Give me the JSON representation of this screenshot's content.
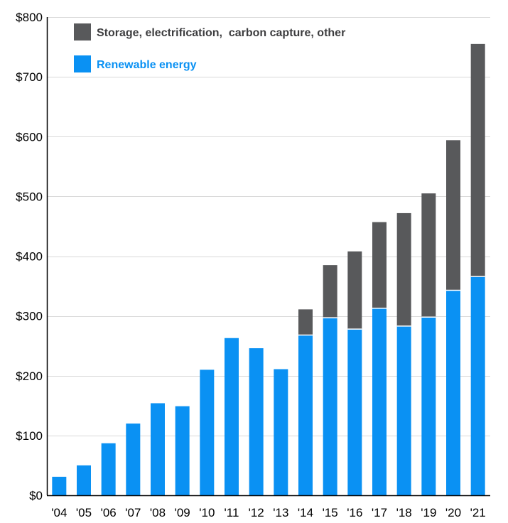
{
  "chart_data": {
    "type": "bar",
    "stacked": true,
    "categories": [
      "'04",
      "'05",
      "'06",
      "'07",
      "'08",
      "'09",
      "'10",
      "'11",
      "'12",
      "'13",
      "'14",
      "'15",
      "'16",
      "'17",
      "'18",
      "'19",
      "'20",
      "'21"
    ],
    "series": [
      {
        "name": "Renewable energy",
        "color": "#0a91f3",
        "values": [
          31,
          50,
          87,
          120,
          154,
          149,
          210,
          263,
          246,
          211,
          268,
          297,
          278,
          313,
          283,
          298,
          343,
          366
        ]
      },
      {
        "name": "Storage, electrification,  carbon capture, other",
        "color": "#58595b",
        "values": [
          0,
          0,
          0,
          0,
          0,
          0,
          0,
          0,
          0,
          0,
          43,
          88,
          130,
          144,
          189,
          207,
          251,
          389
        ]
      }
    ],
    "ylim": [
      0,
      800
    ],
    "yticks": [
      0,
      100,
      200,
      300,
      400,
      500,
      600,
      700,
      800
    ],
    "ytick_labels": [
      "$0",
      "$100",
      "$200",
      "$300",
      "$400",
      "$500",
      "$600",
      "$700",
      "$800"
    ],
    "title": "",
    "xlabel": "",
    "ylabel": "",
    "grid": true,
    "legend": {
      "placement": "top-left",
      "entries": [
        {
          "label": "Storage, electrification,  carbon capture, other",
          "color": "#58595b",
          "text_color": "#3d3d3f"
        },
        {
          "label": "Renewable energy",
          "color": "#0a91f3",
          "text_color": "#0a91f3"
        }
      ]
    },
    "colors": {
      "grid": "#d9d9d9",
      "axis": "#000000",
      "segment_separator": "#ffffff"
    }
  }
}
